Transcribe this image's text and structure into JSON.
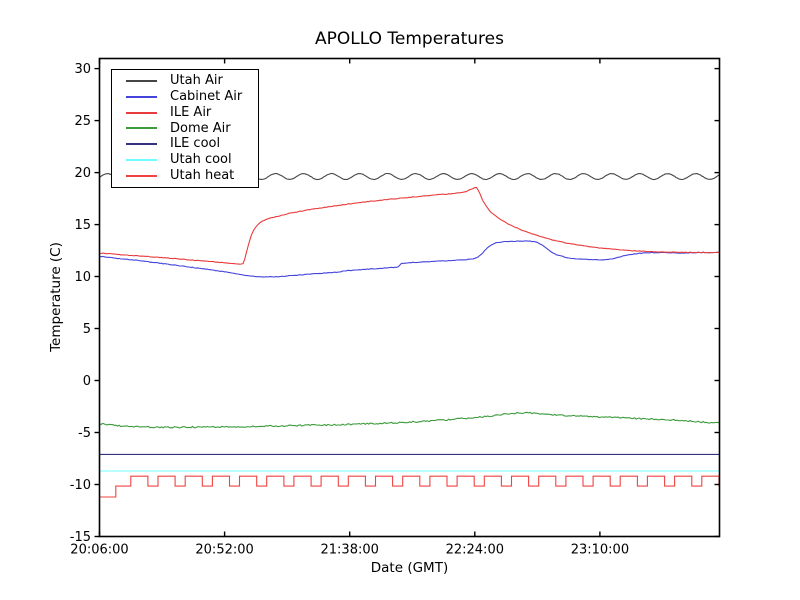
{
  "chart_data": {
    "type": "line",
    "title": "APOLLO Temperatures",
    "xlabel": "Date (GMT)",
    "ylabel": "Temperature (C)",
    "grid": false,
    "legend_position": "upper left",
    "ylim": [
      -15,
      31
    ],
    "x_range_minutes": [
      0,
      228
    ],
    "x_start_time": "20:06:00",
    "x_ticks": [
      {
        "t": 0,
        "label": "20:06:00"
      },
      {
        "t": 46,
        "label": "20:52:00"
      },
      {
        "t": 92,
        "label": "21:38:00"
      },
      {
        "t": 138,
        "label": "22:24:00"
      },
      {
        "t": 184,
        "label": "23:10:00"
      }
    ],
    "y_ticks": [
      30,
      25,
      20,
      15,
      10,
      5,
      0,
      -5,
      -10,
      -15
    ],
    "series": [
      {
        "name": "Utah Air",
        "color": "#454545",
        "shape": "wave",
        "mean": 19.62,
        "amplitude": 0.28,
        "period_min": 10.3,
        "phase_min": 0.4,
        "jitter": 0.04
      },
      {
        "name": "Cabinet Air",
        "color": "#4444dd",
        "shape": "keypoints",
        "jitter": 0.03,
        "points": [
          [
            0,
            11.95
          ],
          [
            3,
            11.85
          ],
          [
            6,
            11.75
          ],
          [
            9,
            11.68
          ],
          [
            12,
            11.6
          ],
          [
            15,
            11.52
          ],
          [
            18,
            11.42
          ],
          [
            21,
            11.33
          ],
          [
            24,
            11.22
          ],
          [
            27,
            11.12
          ],
          [
            30,
            11.02
          ],
          [
            33,
            10.92
          ],
          [
            36,
            10.82
          ],
          [
            39,
            10.72
          ],
          [
            42,
            10.62
          ],
          [
            45,
            10.5
          ],
          [
            48,
            10.38
          ],
          [
            51,
            10.25
          ],
          [
            54,
            10.12
          ],
          [
            56,
            10.05
          ],
          [
            58,
            10.0
          ],
          [
            60,
            9.97
          ],
          [
            62,
            9.96
          ],
          [
            64,
            9.98
          ],
          [
            66,
            10.0
          ],
          [
            69,
            10.05
          ],
          [
            72,
            10.12
          ],
          [
            76,
            10.2
          ],
          [
            80,
            10.28
          ],
          [
            84,
            10.36
          ],
          [
            88,
            10.44
          ],
          [
            90,
            10.55
          ],
          [
            92,
            10.58
          ],
          [
            96,
            10.65
          ],
          [
            100,
            10.73
          ],
          [
            104,
            10.8
          ],
          [
            108,
            10.88
          ],
          [
            110,
            10.95
          ],
          [
            111,
            11.25
          ],
          [
            113,
            11.32
          ],
          [
            116,
            11.36
          ],
          [
            120,
            11.42
          ],
          [
            124,
            11.47
          ],
          [
            128,
            11.52
          ],
          [
            131,
            11.56
          ],
          [
            134,
            11.6
          ],
          [
            136,
            11.68
          ],
          [
            138,
            11.75
          ],
          [
            139,
            11.85
          ],
          [
            140,
            12.05
          ],
          [
            141,
            12.3
          ],
          [
            142,
            12.6
          ],
          [
            143,
            12.85
          ],
          [
            144,
            13.05
          ],
          [
            145,
            13.15
          ],
          [
            146,
            13.25
          ],
          [
            148,
            13.32
          ],
          [
            150,
            13.37
          ],
          [
            153,
            13.4
          ],
          [
            156,
            13.42
          ],
          [
            158,
            13.4
          ],
          [
            160,
            13.35
          ],
          [
            161,
            13.28
          ],
          [
            162,
            13.15
          ],
          [
            163,
            13.0
          ],
          [
            164,
            12.8
          ],
          [
            165,
            12.6
          ],
          [
            166,
            12.4
          ],
          [
            167,
            12.25
          ],
          [
            168,
            12.1
          ],
          [
            170,
            11.95
          ],
          [
            172,
            11.82
          ],
          [
            174,
            11.72
          ],
          [
            176,
            11.68
          ],
          [
            179,
            11.65
          ],
          [
            182,
            11.62
          ],
          [
            185,
            11.6
          ],
          [
            187,
            11.63
          ],
          [
            189,
            11.7
          ],
          [
            191,
            11.85
          ],
          [
            193,
            12.0
          ],
          [
            195,
            12.1
          ],
          [
            197,
            12.18
          ],
          [
            199,
            12.24
          ],
          [
            201,
            12.28
          ],
          [
            204,
            12.3
          ],
          [
            208,
            12.32
          ],
          [
            212,
            12.27
          ],
          [
            215,
            12.25
          ],
          [
            218,
            12.3
          ],
          [
            222,
            12.32
          ],
          [
            228,
            12.3
          ]
        ]
      },
      {
        "name": "ILE Air",
        "color": "#e83c3c",
        "shape": "keypoints",
        "jitter": 0.03,
        "points": [
          [
            0,
            12.25
          ],
          [
            4,
            12.18
          ],
          [
            8,
            12.1
          ],
          [
            12,
            12.02
          ],
          [
            16,
            11.95
          ],
          [
            20,
            11.88
          ],
          [
            24,
            11.8
          ],
          [
            28,
            11.72
          ],
          [
            32,
            11.63
          ],
          [
            36,
            11.55
          ],
          [
            40,
            11.47
          ],
          [
            44,
            11.38
          ],
          [
            47,
            11.3
          ],
          [
            50,
            11.24
          ],
          [
            52,
            11.2
          ],
          [
            53,
            11.3
          ],
          [
            54,
            12.3
          ],
          [
            55,
            13.3
          ],
          [
            56,
            14.1
          ],
          [
            57,
            14.6
          ],
          [
            58,
            14.95
          ],
          [
            59,
            15.18
          ],
          [
            60,
            15.35
          ],
          [
            62,
            15.55
          ],
          [
            64,
            15.7
          ],
          [
            67,
            15.9
          ],
          [
            70,
            16.08
          ],
          [
            74,
            16.28
          ],
          [
            78,
            16.46
          ],
          [
            82,
            16.62
          ],
          [
            86,
            16.78
          ],
          [
            90,
            16.92
          ],
          [
            94,
            17.05
          ],
          [
            98,
            17.18
          ],
          [
            102,
            17.3
          ],
          [
            106,
            17.42
          ],
          [
            110,
            17.52
          ],
          [
            114,
            17.62
          ],
          [
            118,
            17.72
          ],
          [
            122,
            17.81
          ],
          [
            126,
            17.9
          ],
          [
            130,
            17.98
          ],
          [
            133,
            18.05
          ],
          [
            135,
            18.2
          ],
          [
            136,
            18.35
          ],
          [
            137,
            18.45
          ],
          [
            138,
            18.55
          ],
          [
            138.5,
            18.6
          ],
          [
            139,
            18.45
          ],
          [
            140,
            17.9
          ],
          [
            141,
            17.3
          ],
          [
            142,
            16.85
          ],
          [
            143,
            16.5
          ],
          [
            144,
            16.2
          ],
          [
            146,
            15.75
          ],
          [
            148,
            15.4
          ],
          [
            150,
            15.1
          ],
          [
            152,
            14.85
          ],
          [
            155,
            14.5
          ],
          [
            158,
            14.2
          ],
          [
            161,
            13.95
          ],
          [
            164,
            13.72
          ],
          [
            167,
            13.5
          ],
          [
            170,
            13.32
          ],
          [
            173,
            13.17
          ],
          [
            176,
            13.03
          ],
          [
            180,
            12.88
          ],
          [
            184,
            12.75
          ],
          [
            188,
            12.64
          ],
          [
            192,
            12.55
          ],
          [
            196,
            12.48
          ],
          [
            200,
            12.43
          ],
          [
            205,
            12.38
          ],
          [
            210,
            12.35
          ],
          [
            215,
            12.33
          ],
          [
            220,
            12.32
          ],
          [
            228,
            12.3
          ]
        ]
      },
      {
        "name": "Dome Air",
        "color": "#3d9b3d",
        "shape": "keypoints",
        "jitter": 0.07,
        "points": [
          [
            0,
            -4.15
          ],
          [
            3,
            -4.25
          ],
          [
            6,
            -4.33
          ],
          [
            10,
            -4.4
          ],
          [
            14,
            -4.45
          ],
          [
            18,
            -4.48
          ],
          [
            22,
            -4.5
          ],
          [
            28,
            -4.5
          ],
          [
            34,
            -4.48
          ],
          [
            40,
            -4.45
          ],
          [
            46,
            -4.45
          ],
          [
            52,
            -4.43
          ],
          [
            58,
            -4.4
          ],
          [
            64,
            -4.38
          ],
          [
            70,
            -4.35
          ],
          [
            76,
            -4.3
          ],
          [
            82,
            -4.28
          ],
          [
            88,
            -4.25
          ],
          [
            94,
            -4.2
          ],
          [
            100,
            -4.15
          ],
          [
            105,
            -4.1
          ],
          [
            110,
            -4.05
          ],
          [
            115,
            -3.98
          ],
          [
            120,
            -3.9
          ],
          [
            125,
            -3.82
          ],
          [
            130,
            -3.74
          ],
          [
            135,
            -3.62
          ],
          [
            140,
            -3.5
          ],
          [
            144,
            -3.4
          ],
          [
            148,
            -3.28
          ],
          [
            151,
            -3.18
          ],
          [
            154,
            -3.12
          ],
          [
            157,
            -3.1
          ],
          [
            160,
            -3.15
          ],
          [
            164,
            -3.22
          ],
          [
            168,
            -3.3
          ],
          [
            172,
            -3.38
          ],
          [
            176,
            -3.42
          ],
          [
            180,
            -3.46
          ],
          [
            185,
            -3.52
          ],
          [
            190,
            -3.58
          ],
          [
            195,
            -3.62
          ],
          [
            200,
            -3.68
          ],
          [
            205,
            -3.72
          ],
          [
            210,
            -3.78
          ],
          [
            214,
            -3.85
          ],
          [
            218,
            -3.92
          ],
          [
            222,
            -4.0
          ],
          [
            225,
            -4.05
          ],
          [
            228,
            -4.1
          ]
        ]
      },
      {
        "name": "ILE cool",
        "color": "#33337f",
        "shape": "keypoints",
        "jitter": 0,
        "points": [
          [
            0,
            -7.1
          ],
          [
            228,
            -7.1
          ]
        ]
      },
      {
        "name": "Utah cool",
        "color": "#6ffcfc",
        "shape": "keypoints",
        "jitter": 0,
        "points": [
          [
            0,
            -8.7
          ],
          [
            228,
            -8.7
          ]
        ]
      },
      {
        "name": "Utah heat",
        "color": "#ef4343",
        "shape": "square",
        "intro_segments": [
          [
            0,
            6,
            -11.2
          ],
          [
            6,
            11.5,
            -10.15
          ]
        ],
        "pulse": {
          "start": 11.5,
          "period": 10.0,
          "high_duration": 6.3,
          "high": -9.2,
          "low": -10.15,
          "end": 228
        }
      }
    ]
  }
}
